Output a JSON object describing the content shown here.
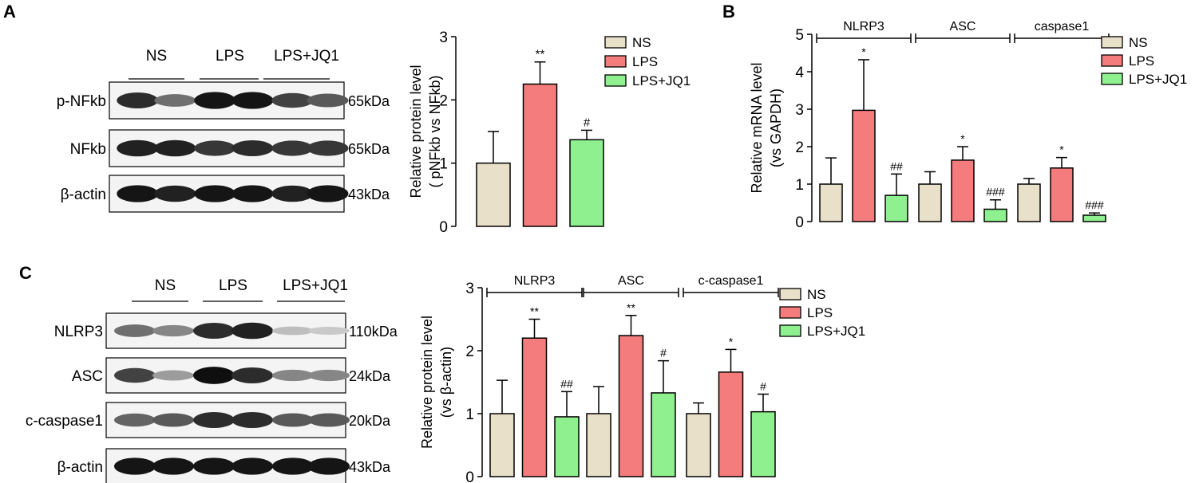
{
  "panels": {
    "a": {
      "letter": "A"
    },
    "b": {
      "letter": "B"
    },
    "c": {
      "letter": "C"
    }
  },
  "blots": [
    {
      "groups": [
        "NS",
        "LPS",
        "LPS+JQ1"
      ],
      "rows": [
        {
          "label": "p-NFkb",
          "kda": "65kDa",
          "intensity": [
            0.85,
            0.55,
            0.95,
            0.95,
            0.75,
            0.65
          ]
        },
        {
          "label": "NFkb",
          "kda": "65kDa",
          "intensity": [
            0.9,
            0.9,
            0.8,
            0.85,
            0.8,
            0.8
          ]
        },
        {
          "label": "β-actin",
          "kda": "43kDa",
          "intensity": [
            0.95,
            0.9,
            0.95,
            0.95,
            0.9,
            0.95
          ]
        }
      ]
    },
    {
      "groups": [
        "NS",
        "LPS",
        "LPS+JQ1"
      ],
      "rows": [
        {
          "label": "NLRP3",
          "kda": "110kDa",
          "intensity": [
            0.55,
            0.45,
            0.85,
            0.9,
            0.2,
            0.15
          ]
        },
        {
          "label": "ASC",
          "kda": "24kDa",
          "intensity": [
            0.75,
            0.35,
            0.98,
            0.85,
            0.45,
            0.45
          ]
        },
        {
          "label": "c-caspase1",
          "kda": "20kDa",
          "intensity": [
            0.6,
            0.65,
            0.85,
            0.85,
            0.65,
            0.65
          ]
        },
        {
          "label": "β-actin",
          "kda": "43kDa",
          "intensity": [
            0.95,
            0.95,
            0.95,
            0.95,
            0.95,
            0.95
          ]
        }
      ]
    }
  ],
  "chart_data": [
    {
      "panel": "A",
      "type": "bar",
      "ylabel_lines": [
        "Relative protein level",
        "( pNFkb vs NFkb)"
      ],
      "ylim": [
        0,
        3
      ],
      "yticks": [
        0,
        1,
        2,
        3
      ],
      "groups": [
        {
          "label": "",
          "bars": [
            {
              "series": "NS",
              "value": 1.0,
              "err": 0.5,
              "sig": ""
            },
            {
              "series": "LPS",
              "value": 2.25,
              "err": 0.35,
              "sig": "**"
            },
            {
              "series": "LPS+JQ1",
              "value": 1.37,
              "err": 0.15,
              "sig": "#"
            }
          ]
        }
      ],
      "legend": [
        "NS",
        "LPS",
        "LPS+JQ1"
      ]
    },
    {
      "panel": "B",
      "type": "bar",
      "ylabel_lines": [
        "Relative mRNA level",
        "(vs GAPDH)"
      ],
      "ylim": [
        0,
        5
      ],
      "yticks": [
        0,
        1,
        2,
        3,
        4,
        5
      ],
      "groups": [
        {
          "label": "NLRP3",
          "bars": [
            {
              "series": "NS",
              "value": 1.0,
              "err": 0.7,
              "sig": ""
            },
            {
              "series": "LPS",
              "value": 2.97,
              "err": 1.35,
              "sig": "*"
            },
            {
              "series": "LPS+JQ1",
              "value": 0.7,
              "err": 0.57,
              "sig": "##"
            }
          ]
        },
        {
          "label": "ASC",
          "bars": [
            {
              "series": "NS",
              "value": 1.0,
              "err": 0.33,
              "sig": ""
            },
            {
              "series": "LPS",
              "value": 1.64,
              "err": 0.36,
              "sig": "*"
            },
            {
              "series": "LPS+JQ1",
              "value": 0.33,
              "err": 0.25,
              "sig": "###"
            }
          ]
        },
        {
          "label": "caspase1",
          "bars": [
            {
              "series": "NS",
              "value": 1.0,
              "err": 0.15,
              "sig": ""
            },
            {
              "series": "LPS",
              "value": 1.43,
              "err": 0.28,
              "sig": "*"
            },
            {
              "series": "LPS+JQ1",
              "value": 0.17,
              "err": 0.06,
              "sig": "###"
            }
          ]
        }
      ],
      "legend": [
        "NS",
        "LPS",
        "LPS+JQ1"
      ]
    },
    {
      "panel": "C",
      "type": "bar",
      "ylabel_lines": [
        "Relative protein level",
        "(vs β-actin)"
      ],
      "ylim": [
        0,
        3
      ],
      "yticks": [
        0,
        1,
        2,
        3
      ],
      "groups": [
        {
          "label": "NLRP3",
          "bars": [
            {
              "series": "NS",
              "value": 1.0,
              "err": 0.53,
              "sig": ""
            },
            {
              "series": "LPS",
              "value": 2.2,
              "err": 0.3,
              "sig": "**"
            },
            {
              "series": "LPS+JQ1",
              "value": 0.95,
              "err": 0.4,
              "sig": "##"
            }
          ]
        },
        {
          "label": "ASC",
          "bars": [
            {
              "series": "NS",
              "value": 1.0,
              "err": 0.43,
              "sig": ""
            },
            {
              "series": "LPS",
              "value": 2.24,
              "err": 0.32,
              "sig": "**"
            },
            {
              "series": "LPS+JQ1",
              "value": 1.33,
              "err": 0.51,
              "sig": "#"
            }
          ]
        },
        {
          "label": "c-caspase1",
          "bars": [
            {
              "series": "NS",
              "value": 1.0,
              "err": 0.17,
              "sig": ""
            },
            {
              "series": "LPS",
              "value": 1.66,
              "err": 0.36,
              "sig": "*"
            },
            {
              "series": "LPS+JQ1",
              "value": 1.03,
              "err": 0.28,
              "sig": "#"
            }
          ]
        }
      ],
      "legend": [
        "NS",
        "LPS",
        "LPS+JQ1"
      ]
    }
  ],
  "colors": {
    "NS": "#e8e0c8",
    "LPS": "#f47c7c",
    "LPS+JQ1": "#8ef08e",
    "axis": "#000000"
  }
}
